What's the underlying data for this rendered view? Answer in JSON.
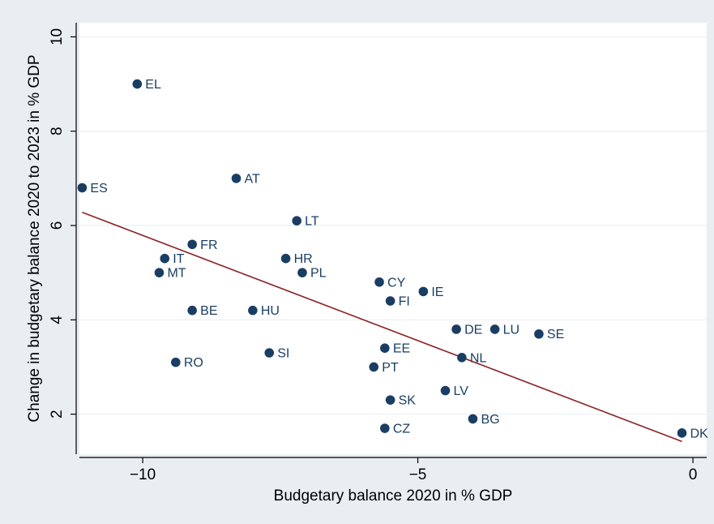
{
  "chart_data": {
    "type": "scatter",
    "title": "",
    "xlabel": "Budgetary balance 2020 in % GDP",
    "ylabel": "Change in budgetary balance 2020 to 2023 in % GDP",
    "xlim": [
      -11.15,
      0.25
    ],
    "ylim": [
      1.15,
      10.3
    ],
    "xticks": [
      -10,
      -5,
      0
    ],
    "yticks": [
      2,
      4,
      6,
      8,
      10
    ],
    "grid": "horizontal",
    "legend": "none",
    "colors": {
      "background": "#e9eef2",
      "plot_background": "#ffffff",
      "marker": "#1a3e63",
      "label": "#1a3e63",
      "fit_line": "#8b2326",
      "grid": "#e9eef2"
    },
    "points": [
      {
        "label": "EL",
        "x": -10.1,
        "y": 9.0
      },
      {
        "label": "ES",
        "x": -11.1,
        "y": 6.8
      },
      {
        "label": "AT",
        "x": -8.3,
        "y": 7.0
      },
      {
        "label": "LT",
        "x": -7.2,
        "y": 6.1
      },
      {
        "label": "FR",
        "x": -9.1,
        "y": 5.6
      },
      {
        "label": "IT",
        "x": -9.6,
        "y": 5.3
      },
      {
        "label": "MT",
        "x": -9.7,
        "y": 5.0
      },
      {
        "label": "HR",
        "x": -7.4,
        "y": 5.3
      },
      {
        "label": "PL",
        "x": -7.1,
        "y": 5.0
      },
      {
        "label": "CY",
        "x": -5.7,
        "y": 4.8
      },
      {
        "label": "IE",
        "x": -4.9,
        "y": 4.6
      },
      {
        "label": "FI",
        "x": -5.5,
        "y": 4.4
      },
      {
        "label": "BE",
        "x": -9.1,
        "y": 4.2
      },
      {
        "label": "HU",
        "x": -8.0,
        "y": 4.2
      },
      {
        "label": "DE",
        "x": -4.3,
        "y": 3.8
      },
      {
        "label": "LU",
        "x": -3.6,
        "y": 3.8
      },
      {
        "label": "SE",
        "x": -2.8,
        "y": 3.7
      },
      {
        "label": "EE",
        "x": -5.6,
        "y": 3.4
      },
      {
        "label": "SI",
        "x": -7.7,
        "y": 3.3
      },
      {
        "label": "NL",
        "x": -4.2,
        "y": 3.2
      },
      {
        "label": "RO",
        "x": -9.4,
        "y": 3.1
      },
      {
        "label": "PT",
        "x": -5.8,
        "y": 3.0
      },
      {
        "label": "LV",
        "x": -4.5,
        "y": 2.5
      },
      {
        "label": "SK",
        "x": -5.5,
        "y": 2.3
      },
      {
        "label": "BG",
        "x": -4.0,
        "y": 1.9
      },
      {
        "label": "CZ",
        "x": -5.6,
        "y": 1.7
      },
      {
        "label": "DK",
        "x": -0.2,
        "y": 1.6
      }
    ],
    "fit_line": {
      "x": [
        -11.1,
        -0.2
      ],
      "y": [
        6.28,
        1.42
      ]
    }
  }
}
